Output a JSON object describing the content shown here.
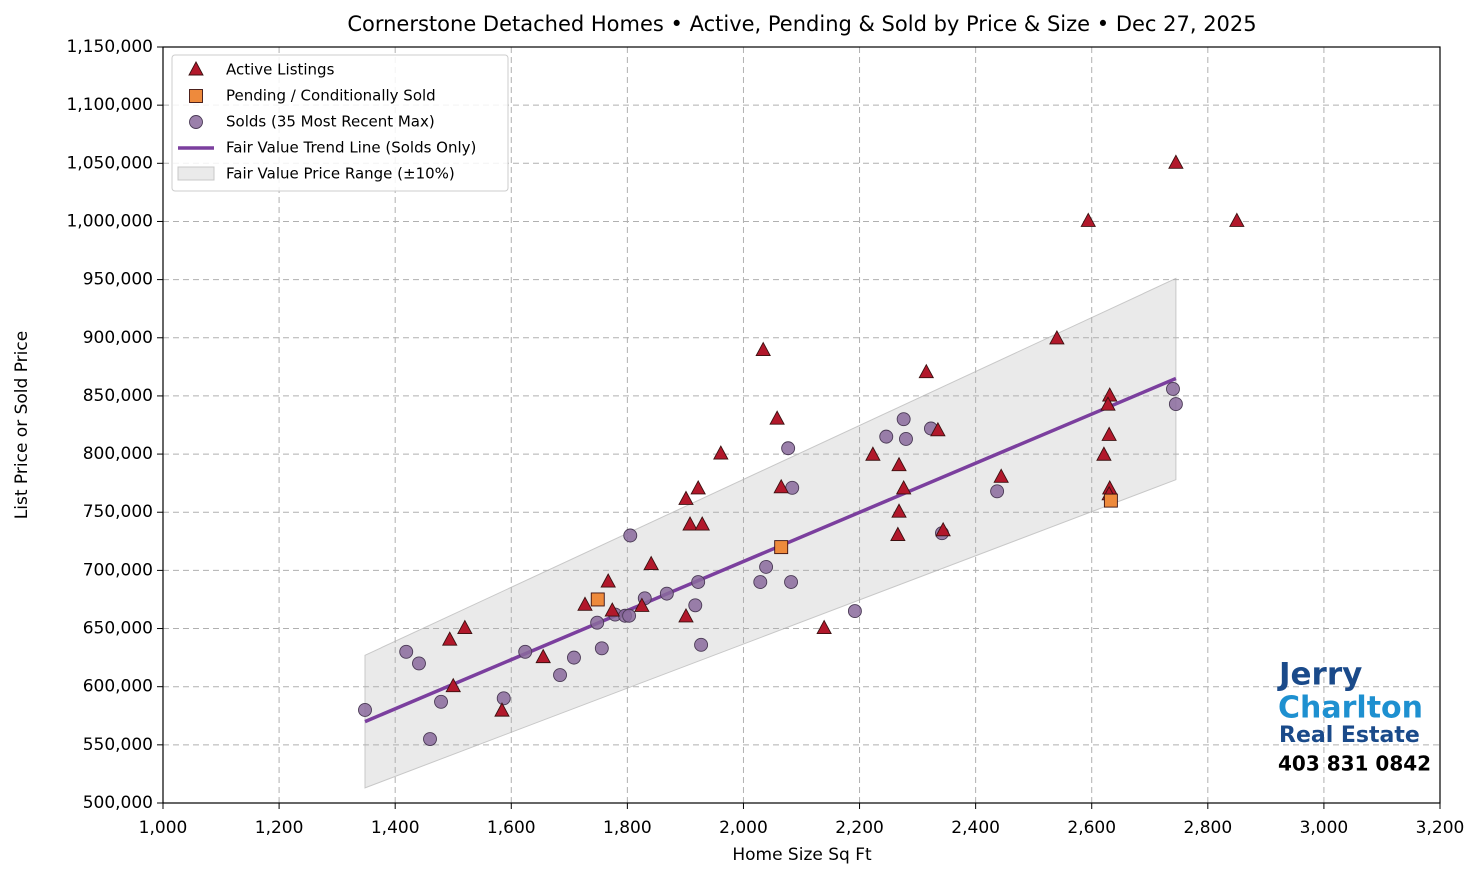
{
  "chart_data": {
    "type": "scatter",
    "title": "Cornerstone Detached Homes • Active, Pending & Sold by Price & Size • Dec 27, 2025",
    "x_label": "Home Size Sq Ft",
    "y_label": "List Price or Sold Price",
    "xlim": [
      1000,
      3200
    ],
    "ylim": [
      500000,
      1150000
    ],
    "xticks": [
      {
        "value": 1000,
        "label": "1,000"
      },
      {
        "value": 1200,
        "label": "1,200"
      },
      {
        "value": 1400,
        "label": "1,400"
      },
      {
        "value": 1600,
        "label": "1,600"
      },
      {
        "value": 1800,
        "label": "1,800"
      },
      {
        "value": 2000,
        "label": "2,000"
      },
      {
        "value": 2200,
        "label": "2,200"
      },
      {
        "value": 2400,
        "label": "2,400"
      },
      {
        "value": 2600,
        "label": "2,600"
      },
      {
        "value": 2800,
        "label": "2,800"
      },
      {
        "value": 3000,
        "label": "3,000"
      },
      {
        "value": 3200,
        "label": "3,200"
      }
    ],
    "yticks": [
      {
        "value": 500000,
        "label": "500,000"
      },
      {
        "value": 550000,
        "label": "550,000"
      },
      {
        "value": 600000,
        "label": "600,000"
      },
      {
        "value": 650000,
        "label": "650,000"
      },
      {
        "value": 700000,
        "label": "700,000"
      },
      {
        "value": 750000,
        "label": "750,000"
      },
      {
        "value": 800000,
        "label": "800,000"
      },
      {
        "value": 850000,
        "label": "850,000"
      },
      {
        "value": 900000,
        "label": "900,000"
      },
      {
        "value": 950000,
        "label": "950,000"
      },
      {
        "value": 1000000,
        "label": "1,000,000"
      },
      {
        "value": 1050000,
        "label": "1,050,000"
      },
      {
        "value": 1100000,
        "label": "1,100,000"
      },
      {
        "value": 1150000,
        "label": "1,150,000"
      }
    ],
    "grid": true,
    "legend": "upper left",
    "series": [
      {
        "name": "Active Listings",
        "color": "#b2182b",
        "marker": "triangle",
        "x": [
          2745,
          2594,
          2850,
          2540,
          2034,
          2315,
          2631,
          2628,
          2058,
          2335,
          2630,
          1961,
          2223,
          2621,
          2268,
          2444,
          2276,
          2065,
          1922,
          2631,
          2630,
          1901,
          2268,
          1908,
          1929,
          2266,
          2344,
          1841,
          1767,
          1727,
          1825,
          1774,
          1901,
          1520,
          1494,
          1500,
          1584,
          1655,
          2139
        ],
        "values": [
          1050000,
          1000000,
          1000000,
          899000,
          889000,
          870000,
          849900,
          842000,
          830000,
          820000,
          816000,
          800000,
          799000,
          799000,
          790000,
          780000,
          770000,
          771000,
          770000,
          770000,
          765000,
          761000,
          750000,
          739000,
          739000,
          730000,
          734000,
          705000,
          690000,
          670000,
          669000,
          665000,
          660000,
          650000,
          640000,
          600000,
          579000,
          625000,
          650000
        ]
      },
      {
        "name": "Pending / Conditionally Sold",
        "color": "#ee8a3c",
        "marker": "square",
        "x": [
          1749,
          2065,
          2633
        ],
        "values": [
          675000,
          720000,
          760000
        ]
      },
      {
        "name": "Solds (35 Most Recent Max)",
        "color": "#8a6a9c",
        "marker": "circle",
        "x": [
          1348,
          1419,
          1441,
          1479,
          1460,
          1587,
          1624,
          1684,
          1708,
          1748,
          1756,
          1779,
          1796,
          1803,
          1805,
          1830,
          1868,
          1917,
          1922,
          1927,
          2029,
          2039,
          2077,
          2084,
          2082,
          2192,
          2246,
          2276,
          2280,
          2323,
          2342,
          2437,
          2740,
          2745
        ],
        "values": [
          580000,
          630000,
          620000,
          587000,
          555000,
          590000,
          630000,
          610000,
          625000,
          655000,
          633000,
          662000,
          661000,
          661000,
          730000,
          676000,
          680000,
          670000,
          690000,
          636000,
          690000,
          703000,
          805000,
          771000,
          690000,
          665000,
          815000,
          830000,
          813000,
          822000,
          732000,
          768000,
          856000,
          843000
        ]
      }
    ],
    "trend": {
      "name": "Fair Value Trend Line (Solds Only)",
      "color": "#7b3f9e",
      "x": [
        1348,
        2745
      ],
      "values": [
        570000,
        865000
      ]
    },
    "band": {
      "name": "Fair Value Price Range (±10%)",
      "color": "#d9d9d9",
      "x": [
        1348,
        2745
      ],
      "lower": [
        513000,
        778000
      ],
      "upper": [
        627000,
        951000
      ]
    }
  },
  "logo": {
    "line1": "Jerry",
    "line2": "Charlton",
    "line3": "Real Estate",
    "phone": "403 831 0842"
  }
}
